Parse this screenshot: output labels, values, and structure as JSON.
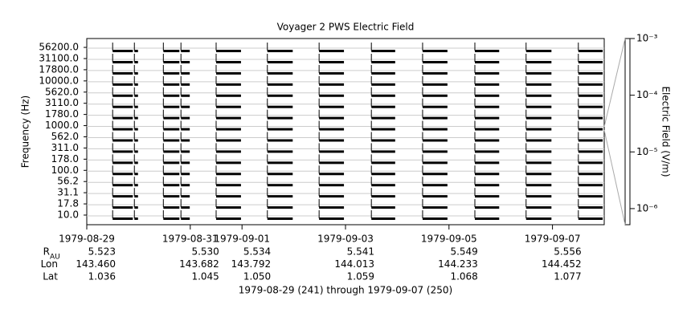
{
  "chart_data": {
    "type": "timeline",
    "title": "Voyager 2 PWS Electric Field",
    "y_label": "Frequency (Hz)",
    "y2_label": "Electric Field (V/m)",
    "footer": "1979-08-29 (241) through 1979-09-07 (250)",
    "channels": [
      "10.0",
      "17.8",
      "31.1",
      "56.2",
      "100.0",
      "178.0",
      "311.0",
      "562.0",
      "1000.0",
      "1780.0",
      "3110.0",
      "5620.0",
      "10000.0",
      "17800.0",
      "31100.0",
      "56200.0"
    ],
    "xlim": [
      241,
      251
    ],
    "xticks": [
      {
        "value": 241,
        "label": "1979-08-29"
      },
      {
        "value": 243,
        "label": "1979-08-31"
      },
      {
        "value": 244,
        "label": "1979-09-01"
      },
      {
        "value": 246,
        "label": "1979-09-03"
      },
      {
        "value": 248,
        "label": "1979-09-05"
      },
      {
        "value": 250,
        "label": "1979-09-07"
      }
    ],
    "coverage": [
      [
        241.5,
        241.89
      ],
      [
        241.92,
        241.99
      ],
      [
        242.48,
        242.79
      ],
      [
        242.82,
        242.99
      ],
      [
        243.5,
        243.98
      ],
      [
        244.49,
        244.98
      ],
      [
        245.49,
        245.97
      ],
      [
        246.5,
        246.96
      ],
      [
        247.49,
        247.97
      ],
      [
        248.5,
        248.97
      ],
      [
        249.49,
        249.98
      ],
      [
        250.5,
        250.97
      ]
    ],
    "color": "#000000",
    "y2lim": [
      5.2e-07,
      0.001
    ],
    "y2_log": true,
    "y2ticks": [
      {
        "value": 0.001,
        "label": "10⁻³"
      },
      {
        "value": 0.0001,
        "label": "10⁻⁴"
      },
      {
        "value": 1e-05,
        "label": "10⁻⁵"
      },
      {
        "value": 1e-06,
        "label": "10⁻⁶"
      }
    ],
    "ephemeris": [
      {
        "label": "R",
        "label_sub": "AU",
        "values": [
          "5.523",
          "5.530",
          "5.534",
          "5.541",
          "5.549",
          "5.556"
        ]
      },
      {
        "label": "Lon",
        "values": [
          "143.460",
          "143.682",
          "143.792",
          "144.013",
          "144.233",
          "144.452"
        ]
      },
      {
        "label": "Lat",
        "values": [
          "1.036",
          "1.045",
          "1.050",
          "1.059",
          "1.068",
          "1.077"
        ]
      }
    ]
  }
}
